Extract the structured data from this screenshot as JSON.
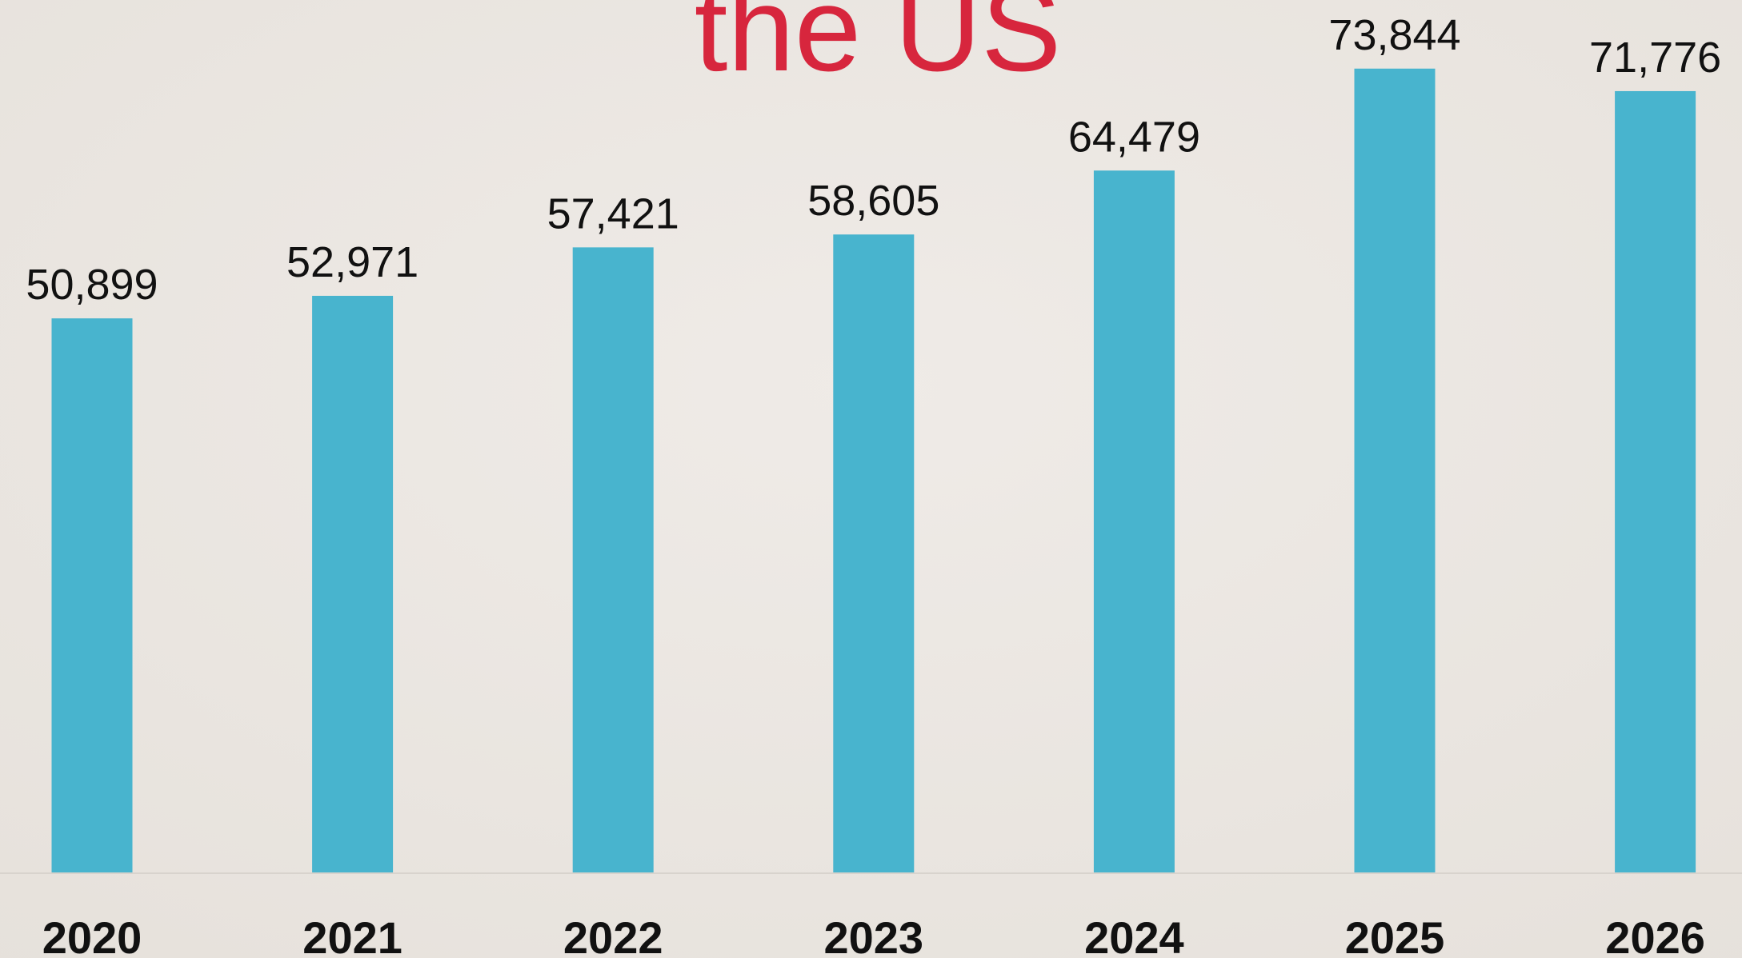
{
  "chart_data": {
    "type": "bar",
    "title": "the US",
    "categories": [
      "2020",
      "2021",
      "2022",
      "2023",
      "2024",
      "2025",
      "2026"
    ],
    "values": [
      50899,
      52971,
      57421,
      58605,
      64479,
      73844,
      71776
    ],
    "value_labels": [
      "50,899",
      "52,971",
      "57,421",
      "58,605",
      "64,479",
      "73,844",
      "71,776"
    ],
    "color": "#48b4ce",
    "ylim": [
      0,
      80000
    ]
  }
}
